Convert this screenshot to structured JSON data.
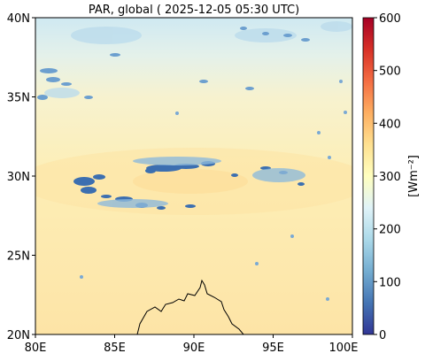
{
  "title": "PAR, global ( 2025-12-05 05:30 UTC)",
  "map": {
    "lon_ticks": [
      "80E",
      "85E",
      "90E",
      "95E",
      "100E"
    ],
    "lat_ticks": [
      "20N",
      "25N",
      "30N",
      "35N",
      "40N"
    ],
    "lon_range": [
      80,
      100
    ],
    "lat_range": [
      20,
      40
    ]
  },
  "colorbar": {
    "label": "[Wm⁻²]",
    "ticks": [
      "0",
      "100",
      "200",
      "300",
      "400",
      "500",
      "600"
    ],
    "range": [
      0,
      600
    ],
    "colormap": "RdYlBu_r",
    "colors": [
      "#313695",
      "#4575b4",
      "#74add1",
      "#abd9e9",
      "#e0f3f8",
      "#ffffbf",
      "#fee090",
      "#fdae61",
      "#f46d43",
      "#d73027",
      "#a50026"
    ]
  },
  "field": {
    "dominant_color": "#fdeeb5",
    "north_color": "#cfe9f2",
    "south_color": "#fde5aa",
    "cloud_color": "#3c6fb0"
  }
}
